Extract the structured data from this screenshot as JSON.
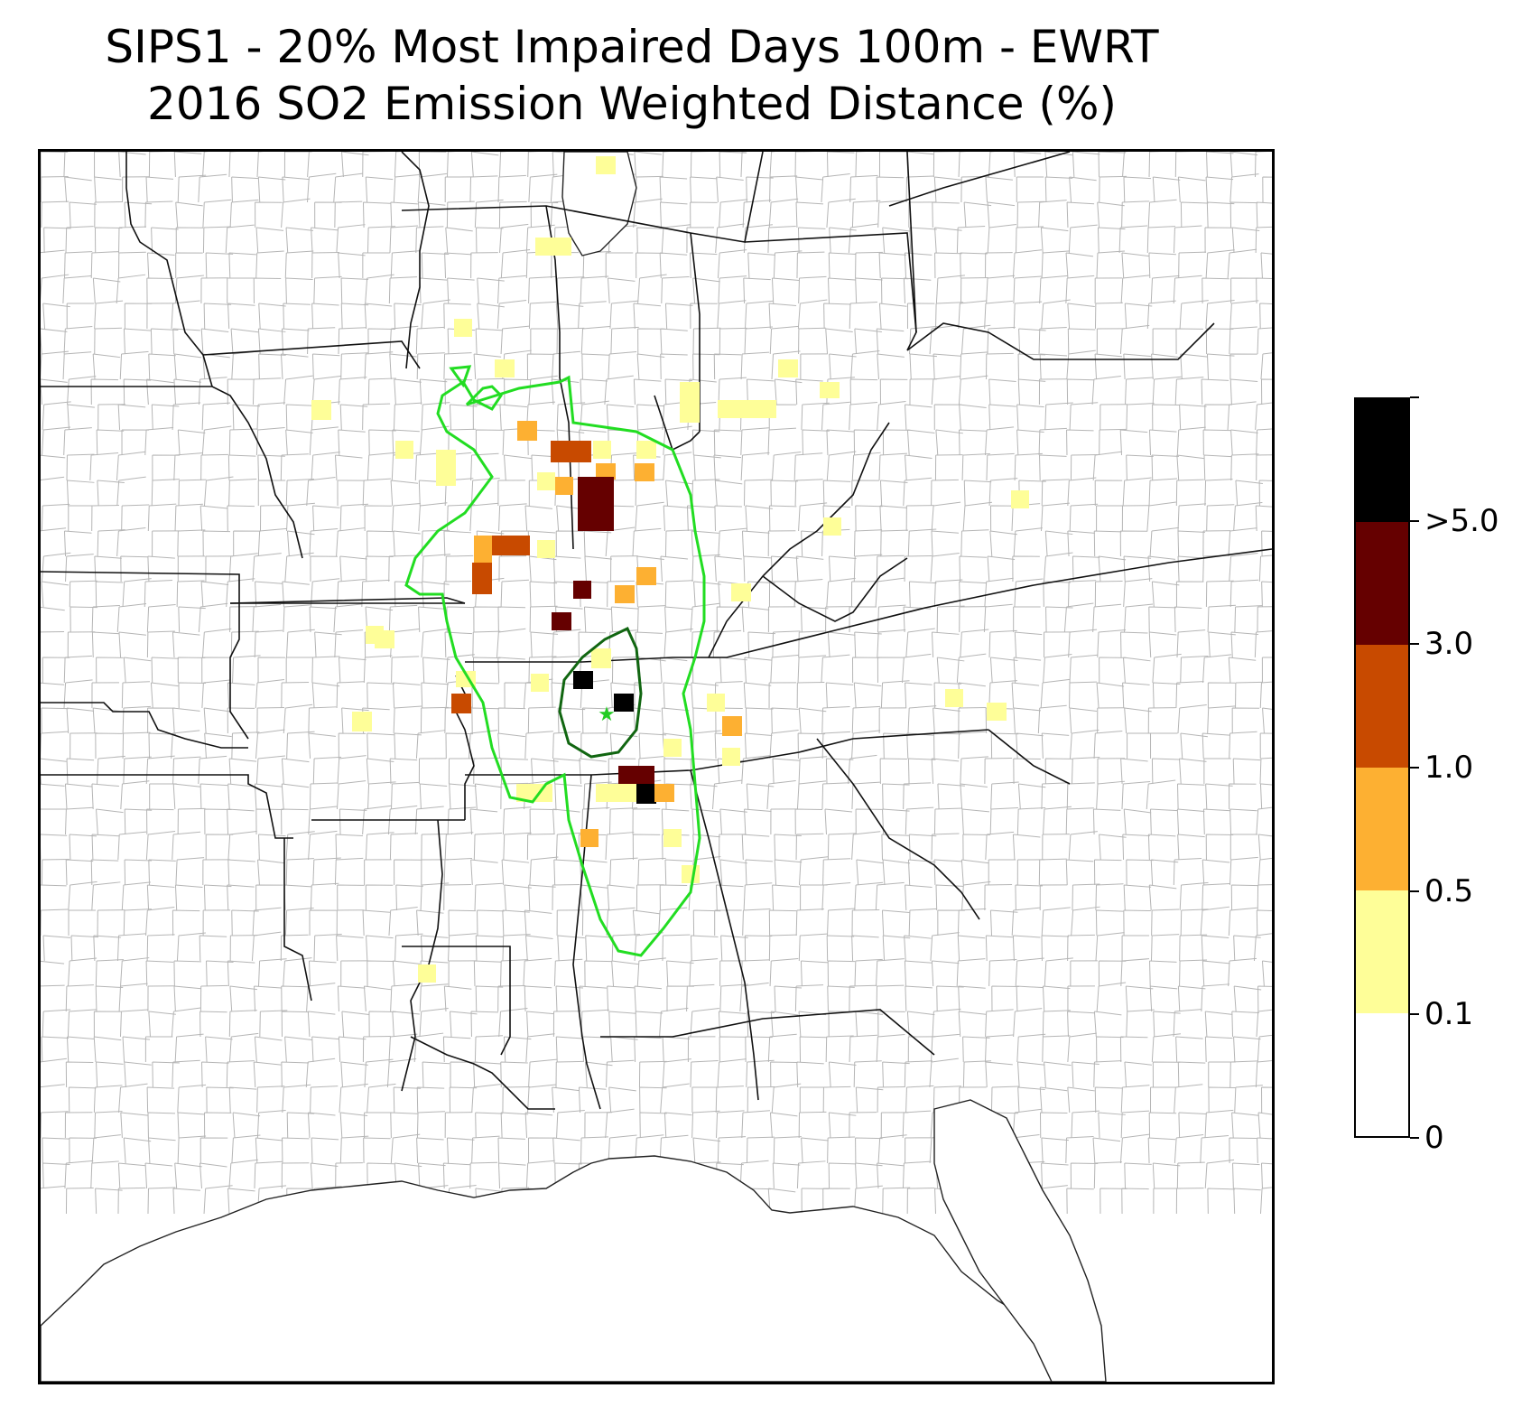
{
  "title": {
    "line1": "SIPS1 - 20% Most Impaired Days 100m - EWRT",
    "line2": "2016 SO2 Emission Weighted Distance (%)"
  },
  "colorbar": {
    "bins": [
      {
        "from": "0",
        "to": "0.1",
        "color": "#ffffff"
      },
      {
        "from": "0.1",
        "to": "0.5",
        "color": "#fefe98"
      },
      {
        "from": "0.5",
        "to": "1.0",
        "color": "#fdb032"
      },
      {
        "from": "1.0",
        "to": "3.0",
        "color": "#c84a00"
      },
      {
        "from": "3.0",
        "to": ">5.0",
        "color": "#650000"
      },
      {
        "from": ">5.0",
        "to": "",
        "color": "#000000"
      }
    ],
    "tick_labels": [
      "0",
      "0.1",
      "0.5",
      "1.0",
      "3.0",
      ">5.0"
    ]
  },
  "map": {
    "region": "Southeastern / Central United States with state and county boundaries",
    "contour_colors": {
      "outer": "#22dd22",
      "inner": "#116611"
    },
    "site_marker": {
      "icon": "star-icon",
      "color": "#22cc22"
    }
  }
}
